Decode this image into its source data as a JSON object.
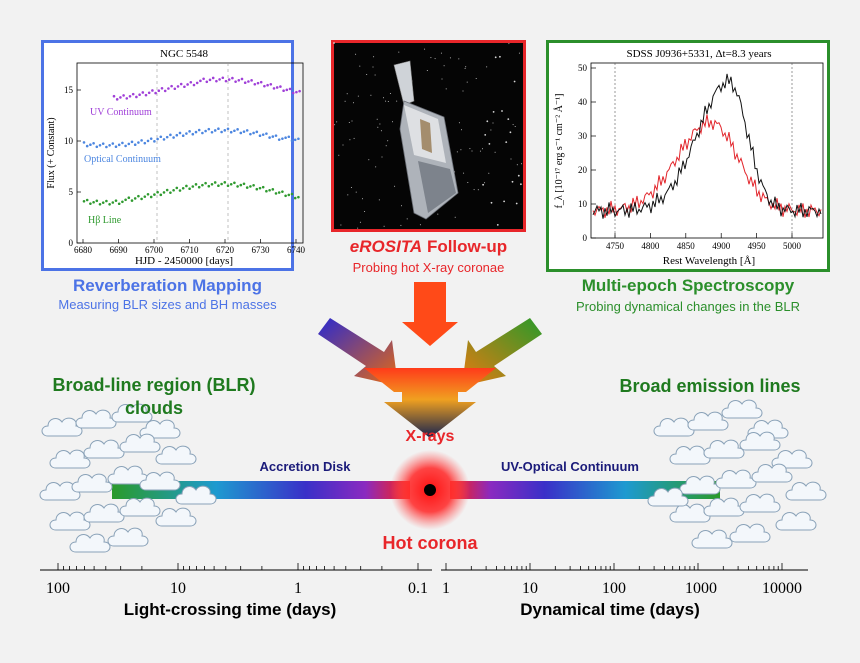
{
  "reverberation": {
    "plot_title": "NGC 5548",
    "xlabel": "HJD - 2450000 [days]",
    "ylabel": "Flux (+ Constant)",
    "xticks": [
      "6680",
      "6690",
      "6700",
      "6710",
      "6720",
      "6730",
      "6740"
    ],
    "yticks": [
      "0",
      "5",
      "10",
      "15"
    ],
    "series_labels": [
      "UV Continuum",
      "Optical Continuum",
      "Hβ Line"
    ],
    "series_colors": [
      "#a040d8",
      "#4c86e0",
      "#2f9a2f"
    ],
    "title": "Reverberation Mapping",
    "subtitle": "Measuring BLR sizes and BH masses"
  },
  "erosita": {
    "title_italic": "eROSITA",
    "title_rest": " Follow-up",
    "subtitle": "Probing hot X-ray coronae"
  },
  "spectroscopy": {
    "plot_title": "SDSS J0936+5331, Δt=8.3 years",
    "xlabel": "Rest Wavelength [Å]",
    "ylabel": "f_λ [10⁻¹⁷ erg s⁻¹ cm⁻² Å⁻¹]",
    "xticks": [
      "4750",
      "4800",
      "4850",
      "4900",
      "4950",
      "5000"
    ],
    "yticks": [
      "0",
      "10",
      "20",
      "30",
      "40",
      "50"
    ],
    "title": "Multi-epoch Spectroscopy",
    "subtitle": "Probing dynamical changes in the BLR"
  },
  "diagram": {
    "blr_label_line1": "Broad-line region (BLR)",
    "blr_label_line2": "clouds",
    "bel_label": "Broad emission lines",
    "xrays_label": "X-rays",
    "accretion_label": "Accretion Disk",
    "continuum_label": "UV-Optical Continuum",
    "corona_label": "Hot corona"
  },
  "scales": {
    "left_ticks": [
      "100",
      "10",
      "1",
      "0.1"
    ],
    "left_title": "Light-crossing time (days)",
    "right_ticks": [
      "1",
      "10",
      "100",
      "1000",
      "10000"
    ],
    "right_title": "Dynamical time (days)"
  }
}
